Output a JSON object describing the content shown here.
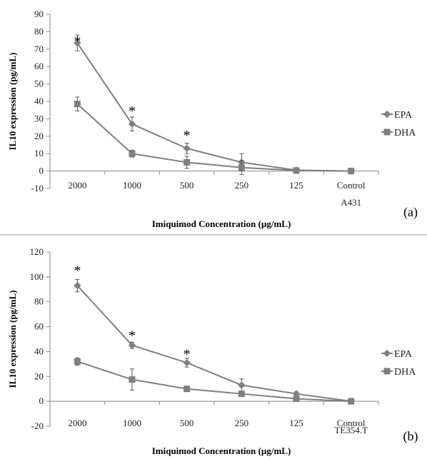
{
  "chart_data": [
    {
      "type": "line",
      "panel_label": "(a)",
      "categories": [
        "2000",
        "1000",
        "500",
        "250",
        "125",
        "Control"
      ],
      "category_sublabel": "A431",
      "xlabel": "Imiquimod Concentration (µg/mL)",
      "ylabel": "IL10 expression (pg/mL)",
      "ylim": [
        -10,
        90
      ],
      "yticks": [
        -10,
        0,
        10,
        20,
        30,
        40,
        50,
        60,
        70,
        80,
        90
      ],
      "series": [
        {
          "name": "EPA",
          "marker": "diamond",
          "values": [
            73.5,
            27,
            13,
            5,
            0.5,
            0
          ],
          "errors": [
            4.5,
            4,
            3,
            5,
            1,
            0.5
          ]
        },
        {
          "name": "DHA",
          "marker": "square",
          "values": [
            38.5,
            10,
            5,
            2,
            0.3,
            0
          ],
          "errors": [
            4,
            2,
            3.5,
            4,
            0.8,
            0.5
          ]
        }
      ],
      "significance": [
        {
          "category": "2000",
          "y": 76,
          "label": "*"
        },
        {
          "category": "1000",
          "y": 36,
          "label": "*"
        },
        {
          "category": "500",
          "y": 22,
          "label": "*"
        }
      ]
    },
    {
      "type": "line",
      "panel_label": "(b)",
      "categories": [
        "2000",
        "1000",
        "500",
        "250",
        "125",
        "Control"
      ],
      "category_sublabel": "TE354.T",
      "xlabel": "Imiquimod Concentration (µg/mL)",
      "ylabel": "IL10 expression (pg/mL)",
      "ylim": [
        -20,
        120
      ],
      "yticks": [
        -20,
        0,
        20,
        40,
        60,
        80,
        100,
        120
      ],
      "series": [
        {
          "name": "EPA",
          "marker": "diamond",
          "values": [
            93,
            45,
            31,
            13,
            6,
            0
          ],
          "errors": [
            5,
            2.5,
            3.5,
            5,
            1.5,
            0.5
          ]
        },
        {
          "name": "DHA",
          "marker": "square",
          "values": [
            32,
            17.5,
            10,
            6,
            2,
            0
          ],
          "errors": [
            3,
            8.5,
            1.5,
            1,
            1,
            0.5
          ]
        }
      ],
      "significance": [
        {
          "category": "2000",
          "y": 107,
          "label": "*"
        },
        {
          "category": "1000",
          "y": 55,
          "label": "*"
        },
        {
          "category": "500",
          "y": 40,
          "label": "*"
        }
      ]
    }
  ]
}
